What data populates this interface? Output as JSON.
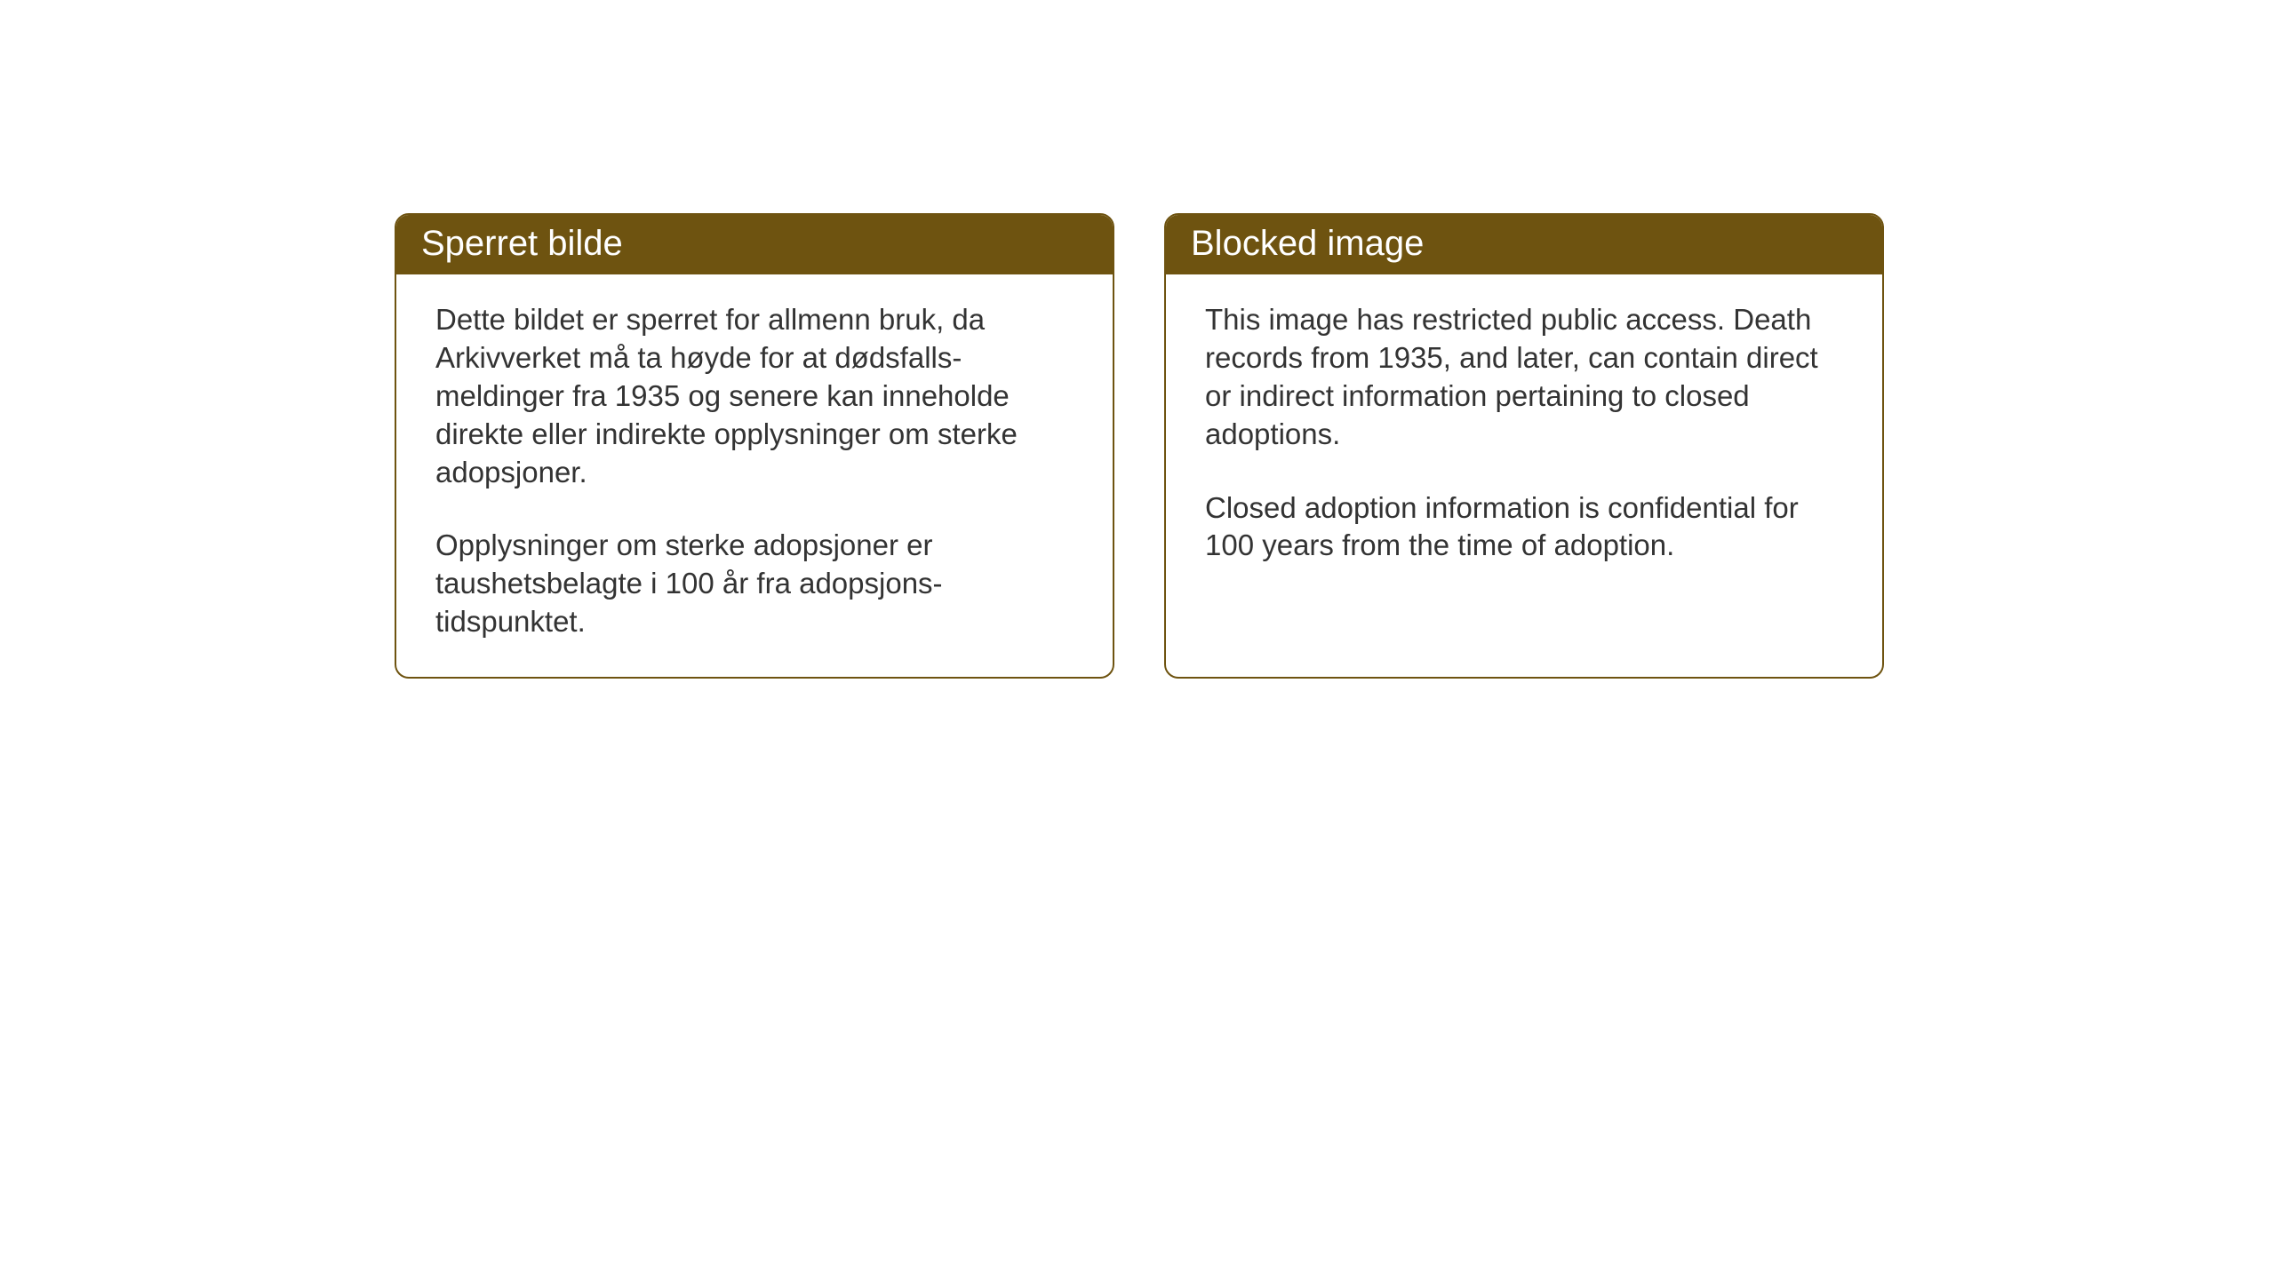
{
  "cards": {
    "left": {
      "title": "Sperret bilde",
      "paragraph1": "Dette bildet er sperret for allmenn bruk, da Arkivverket må ta høyde for at dødsfalls-meldinger fra 1935 og senere kan inneholde direkte eller indirekte opplysninger om sterke adopsjoner.",
      "paragraph2": "Opplysninger om sterke adopsjoner er taushetsbelagte i 100 år fra adopsjons-tidspunktet."
    },
    "right": {
      "title": "Blocked image",
      "paragraph1": "This image has restricted public access. Death records from 1935, and later, can contain direct or indirect information pertaining to closed adoptions.",
      "paragraph2": "Closed adoption information is confidential for 100 years from the time of adoption."
    }
  },
  "styling": {
    "header_background_color": "#6e5310",
    "header_text_color": "#ffffff",
    "border_color": "#6e5310",
    "body_background_color": "#ffffff",
    "body_text_color": "#333333",
    "border_radius": 16,
    "header_fontsize": 40,
    "body_fontsize": 33
  }
}
